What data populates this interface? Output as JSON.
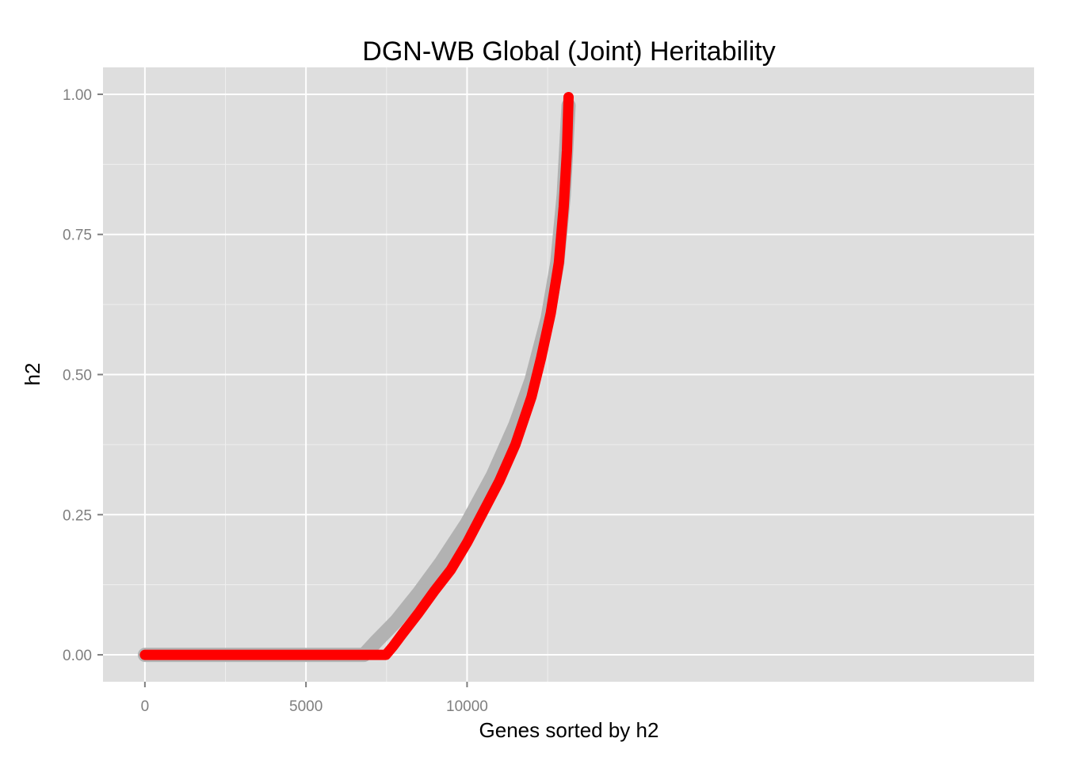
{
  "chart_data": {
    "type": "line",
    "title": "DGN-WB Global (Joint) Heritability",
    "xlabel": "Genes sorted by h2",
    "ylabel": "h2",
    "xlim": [
      -1300,
      27600
    ],
    "ylim": [
      -0.048,
      1.048
    ],
    "x_ticks": [
      0,
      5000,
      10000
    ],
    "x_minor_ticks": [
      2500,
      7500,
      12500
    ],
    "y_ticks": [
      0.0,
      0.25,
      0.5,
      0.75,
      1.0
    ],
    "y_tick_labels": [
      "0.00",
      "0.25",
      "0.50",
      "0.75",
      "1.00"
    ],
    "y_minor_ticks": [
      0.125,
      0.375,
      0.625,
      0.875
    ],
    "grid": true,
    "legend": "none",
    "colors": {
      "panel_background": "#dedede",
      "grid_major": "#ffffff",
      "grid_minor": "#efefef",
      "tick_label": "#7f7f7f"
    },
    "series": [
      {
        "color": "#b2b2b2",
        "line_width": 18,
        "x": [
          0,
          6800,
          7200,
          7800,
          8500,
          9200,
          10000,
          10800,
          11500,
          12000,
          12500,
          12800,
          13000,
          13150
        ],
        "y": [
          0.0,
          0.0,
          0.025,
          0.06,
          0.11,
          0.165,
          0.235,
          0.32,
          0.41,
          0.49,
          0.6,
          0.7,
          0.82,
          0.98
        ]
      },
      {
        "color": "#ff0000",
        "line_width": 13,
        "x": [
          0,
          7480,
          7700,
          8000,
          8500,
          9000,
          9500,
          10000,
          10500,
          11000,
          11500,
          12000,
          12300,
          12600,
          12850,
          13000,
          13100,
          13150
        ],
        "y": [
          0.0,
          0.0,
          0.015,
          0.038,
          0.075,
          0.115,
          0.152,
          0.2,
          0.255,
          0.31,
          0.375,
          0.46,
          0.53,
          0.61,
          0.7,
          0.8,
          0.9,
          0.995
        ]
      }
    ]
  }
}
